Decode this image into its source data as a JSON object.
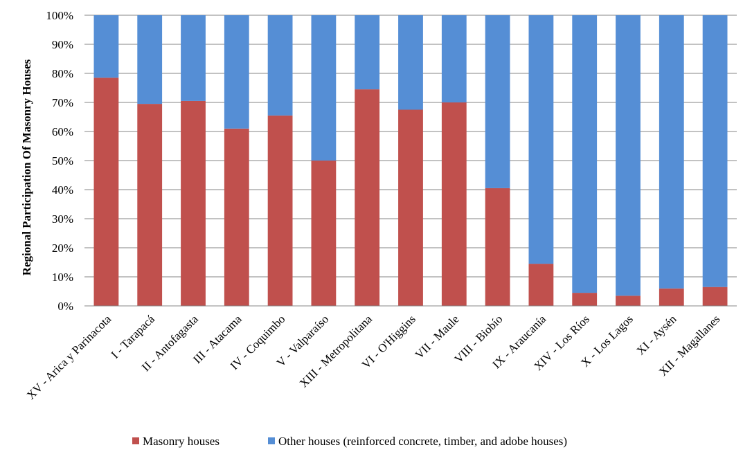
{
  "chart_data": {
    "type": "bar",
    "stacked": true,
    "title": "",
    "xlabel": "",
    "ylabel": "Regional Participation Of Masonry Houses",
    "ylim": [
      0,
      100
    ],
    "yticks": [
      "0%",
      "10%",
      "20%",
      "30%",
      "40%",
      "50%",
      "60%",
      "70%",
      "80%",
      "90%",
      "100%"
    ],
    "grid": true,
    "legend_position": "bottom",
    "categories": [
      "XV - Arica y Parinacota",
      "I - Tarapacá",
      "II - Antofagasta",
      "III - Atacama",
      "IV - Coquimbo",
      "V - Valparaíso",
      "XIII - Metropolitana",
      "VI - O'Higgins",
      "VII - Maule",
      "VIII - Biobío",
      "IX - Araucanía",
      "XIV - Los Ríos",
      "X - Los Lagos",
      "XI - Aysén",
      "XII - Magallanes"
    ],
    "series": [
      {
        "name": "Masonry houses",
        "color": "#C0504D",
        "values": [
          78.5,
          69.5,
          70.5,
          61,
          65.5,
          50,
          74.5,
          67.5,
          70,
          40.5,
          14.5,
          4.5,
          3.5,
          6,
          6.5
        ]
      },
      {
        "name": "Other houses (reinforced concrete, timber, and adobe houses)",
        "color": "#558ED5",
        "values": [
          21.5,
          30.5,
          29.5,
          39,
          34.5,
          50,
          25.5,
          32.5,
          30,
          59.5,
          85.5,
          95.5,
          96.5,
          94,
          93.5
        ]
      }
    ]
  }
}
